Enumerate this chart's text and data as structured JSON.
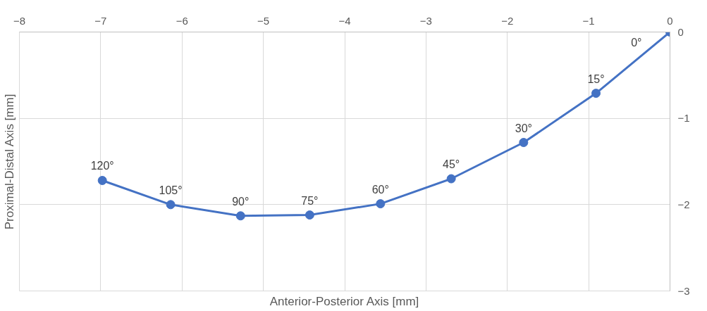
{
  "chart_data": {
    "type": "line",
    "xlabel": "Anterior-Posterior Axis [mm]",
    "ylabel": "Proximal-Distal Axis [mm]",
    "x": [
      0,
      -0.91,
      -1.8,
      -2.69,
      -3.56,
      -4.43,
      -5.28,
      -6.14,
      -6.98
    ],
    "series": [
      {
        "color": "#4472c4",
        "values": [
          0,
          -0.71,
          -1.28,
          -1.7,
          -1.99,
          -2.12,
          -2.13,
          -2.0,
          -1.72
        ]
      }
    ],
    "annotations": [
      {
        "text": "0°",
        "x": 0,
        "y": 0
      },
      {
        "text": "15°",
        "x": -0.91,
        "y": -0.71
      },
      {
        "text": "30°",
        "x": -1.8,
        "y": -1.28
      },
      {
        "text": "45°",
        "x": -2.69,
        "y": -1.7
      },
      {
        "text": "60°",
        "x": -3.56,
        "y": -1.99
      },
      {
        "text": "75°",
        "x": -4.43,
        "y": -2.12
      },
      {
        "text": "90°",
        "x": -5.28,
        "y": -2.13
      },
      {
        "text": "105°",
        "x": -6.14,
        "y": -2.0
      },
      {
        "text": "120°",
        "x": -6.98,
        "y": -1.72
      }
    ],
    "xlim": [
      -8,
      0
    ],
    "xticks": [
      -8,
      -7,
      -6,
      -5,
      -4,
      -3,
      -2,
      -1,
      0
    ],
    "ylim": [
      -3,
      0
    ],
    "yticks": [
      -3,
      -2,
      -1,
      0
    ],
    "grid": true,
    "marker": "circle",
    "line_style": "solid"
  }
}
